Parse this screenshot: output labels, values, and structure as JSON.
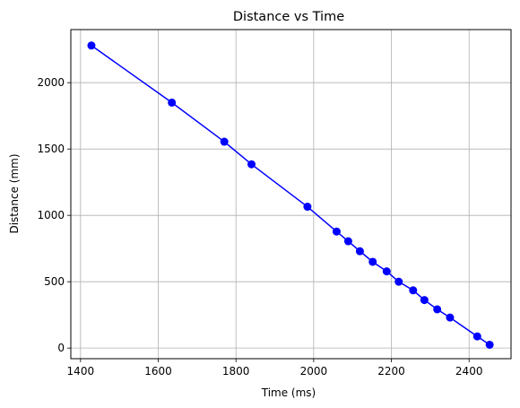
{
  "chart_data": {
    "type": "line",
    "title": "Distance vs Time",
    "xlabel": "Time (ms)",
    "ylabel": "Distance (mm)",
    "xlim": [
      1375,
      2508
    ],
    "ylim": [
      -80,
      2400
    ],
    "xticks": [
      1400,
      1600,
      1800,
      2000,
      2200,
      2400
    ],
    "yticks": [
      0,
      500,
      1000,
      1500,
      2000
    ],
    "grid": true,
    "series": [
      {
        "color": "#0000ff",
        "marker": "circle",
        "x": [
          1428,
          1635,
          1770,
          1840,
          1984,
          2059,
          2089,
          2119,
          2152,
          2188,
          2219,
          2256,
          2285,
          2318,
          2351,
          2421,
          2453
        ],
        "y": [
          2280,
          1850,
          1555,
          1385,
          1065,
          878,
          805,
          730,
          650,
          578,
          500,
          435,
          362,
          292,
          230,
          88,
          25
        ]
      }
    ]
  }
}
